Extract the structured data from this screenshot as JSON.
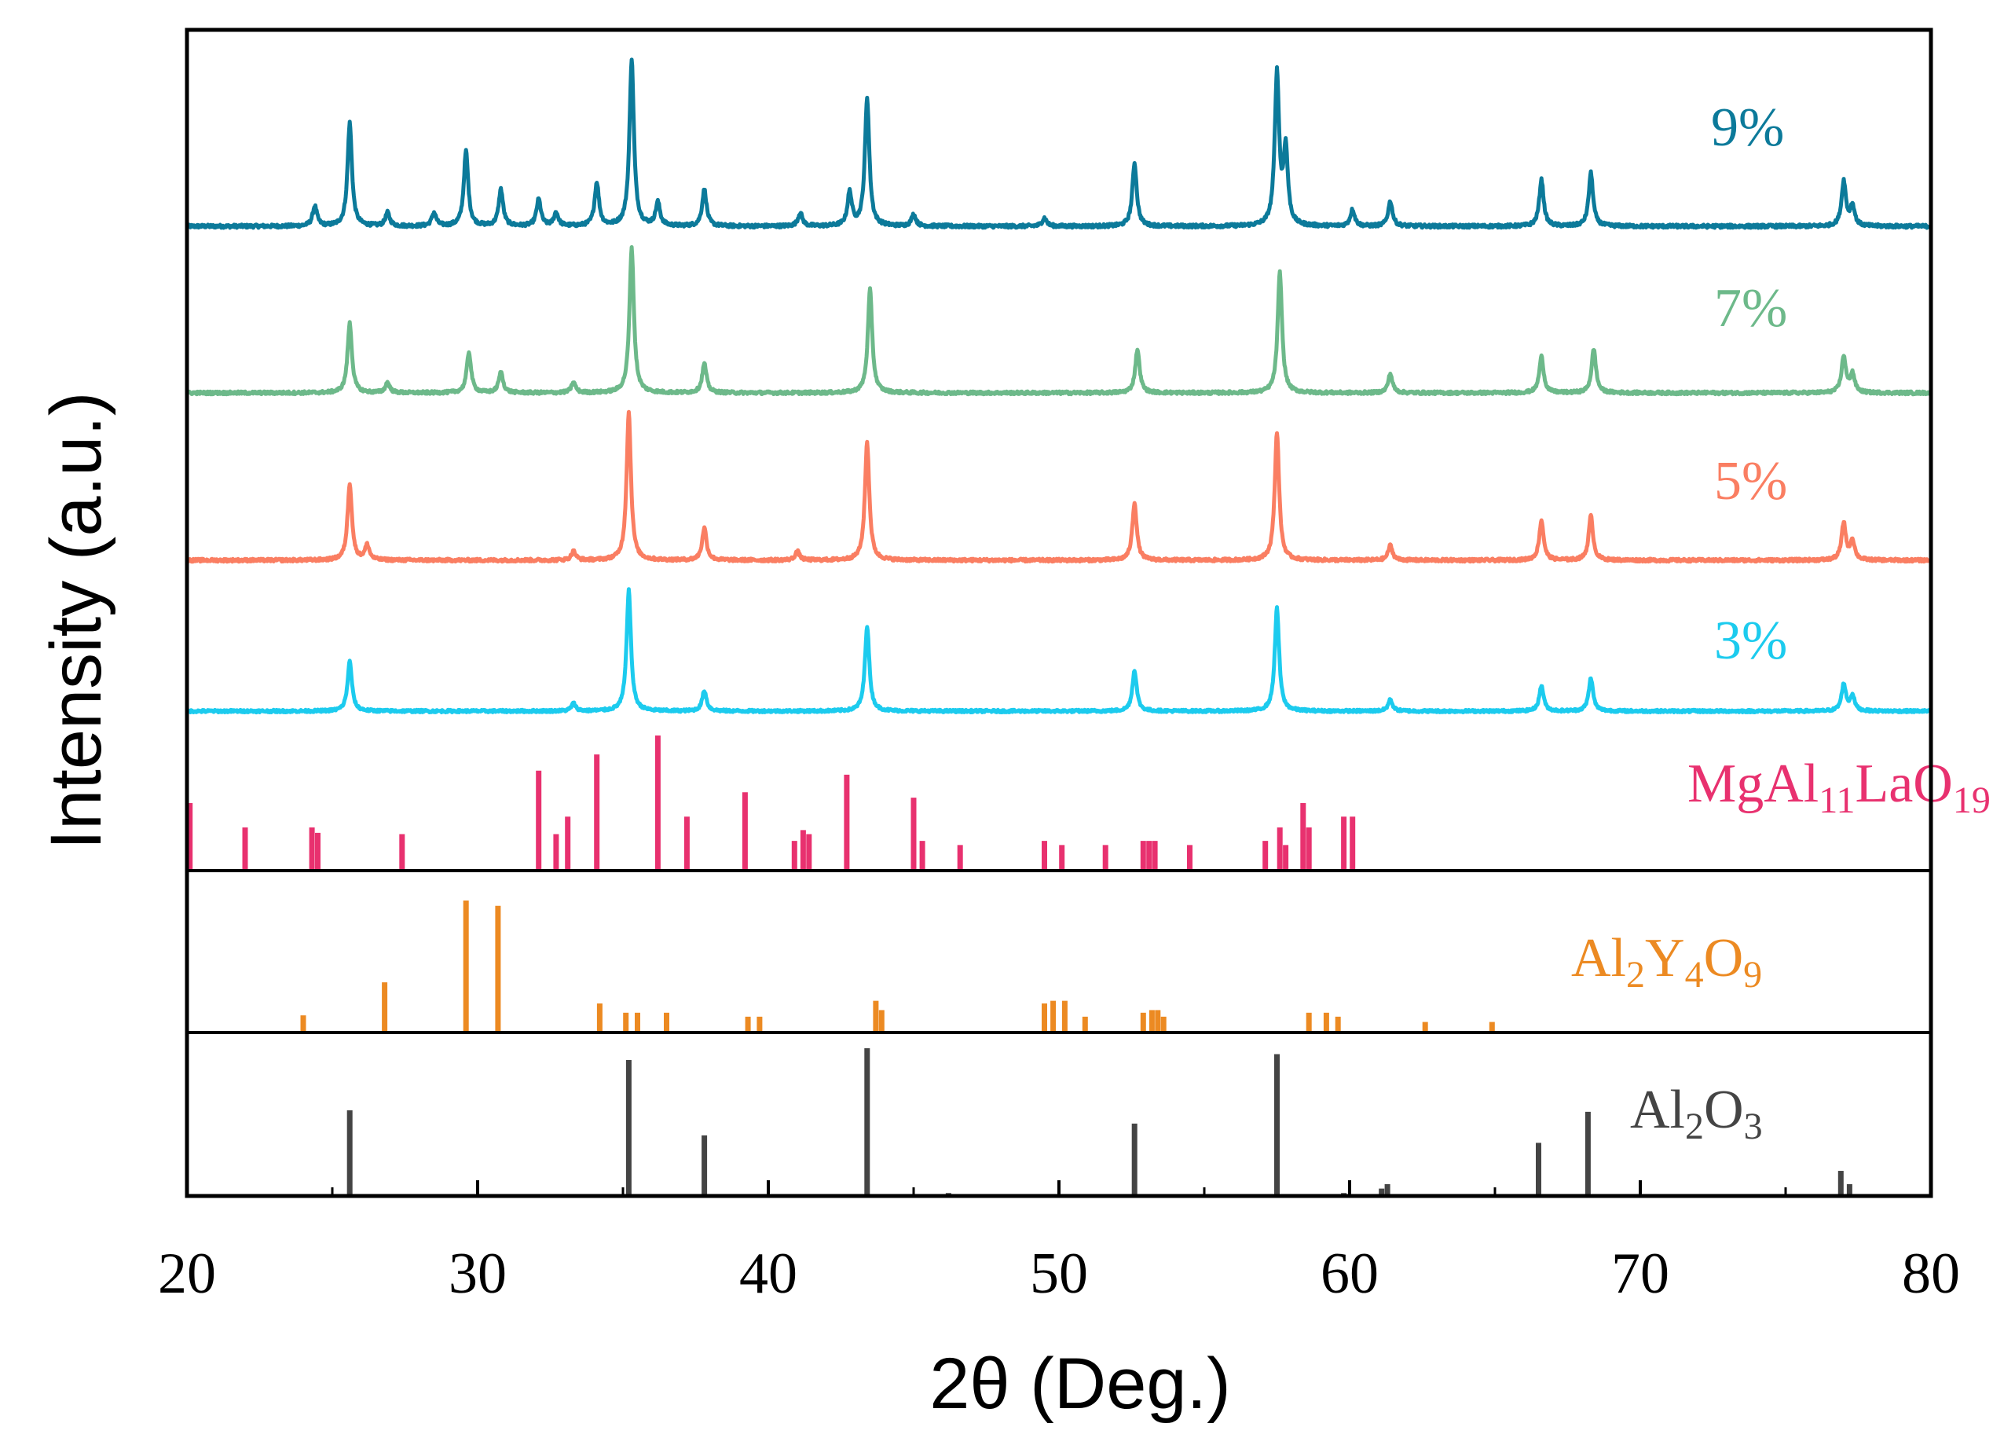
{
  "chart_data": {
    "type": "line",
    "title": "",
    "xlabel": "2θ (Deg.)",
    "ylabel": "Intensity (a.u.)",
    "xlim": [
      20,
      80
    ],
    "xticks": [
      "20",
      "30",
      "40",
      "50",
      "60",
      "70",
      "80"
    ],
    "grid": false,
    "series": [
      {
        "name": "9%",
        "color": "#0c7a9a",
        "peaks": [
          [
            24.4,
            0.12
          ],
          [
            25.6,
            0.62
          ],
          [
            26.9,
            0.08
          ],
          [
            28.5,
            0.08
          ],
          [
            29.6,
            0.45
          ],
          [
            30.8,
            0.22
          ],
          [
            32.1,
            0.16
          ],
          [
            32.7,
            0.08
          ],
          [
            34.1,
            0.26
          ],
          [
            35.3,
            1.0
          ],
          [
            36.2,
            0.14
          ],
          [
            37.8,
            0.22
          ],
          [
            41.1,
            0.08
          ],
          [
            42.8,
            0.2
          ],
          [
            43.4,
            0.77
          ],
          [
            45.0,
            0.07
          ],
          [
            49.5,
            0.05
          ],
          [
            52.6,
            0.38
          ],
          [
            57.5,
            0.91
          ],
          [
            57.8,
            0.45
          ],
          [
            60.1,
            0.1
          ],
          [
            61.4,
            0.15
          ],
          [
            66.6,
            0.28
          ],
          [
            68.3,
            0.32
          ],
          [
            77.0,
            0.27
          ],
          [
            77.3,
            0.12
          ]
        ]
      },
      {
        "name": "7%",
        "color": "#6db98a",
        "peaks": [
          [
            25.6,
            0.48
          ],
          [
            26.9,
            0.07
          ],
          [
            29.7,
            0.28
          ],
          [
            30.8,
            0.14
          ],
          [
            33.3,
            0.07
          ],
          [
            35.3,
            1.0
          ],
          [
            37.8,
            0.2
          ],
          [
            43.5,
            0.71
          ],
          [
            52.7,
            0.3
          ],
          [
            57.6,
            0.83
          ],
          [
            61.4,
            0.13
          ],
          [
            66.6,
            0.25
          ],
          [
            68.4,
            0.3
          ],
          [
            77.0,
            0.25
          ],
          [
            77.3,
            0.13
          ]
        ]
      },
      {
        "name": "5%",
        "color": "#fa7e62",
        "peaks": [
          [
            25.6,
            0.52
          ],
          [
            26.2,
            0.1
          ],
          [
            33.3,
            0.06
          ],
          [
            35.2,
            1.0
          ],
          [
            37.8,
            0.22
          ],
          [
            41.0,
            0.06
          ],
          [
            43.4,
            0.8
          ],
          [
            52.6,
            0.39
          ],
          [
            57.5,
            0.87
          ],
          [
            61.4,
            0.1
          ],
          [
            66.6,
            0.27
          ],
          [
            68.3,
            0.3
          ],
          [
            77.0,
            0.25
          ],
          [
            77.3,
            0.13
          ]
        ]
      },
      {
        "name": "3%",
        "color": "#1ccbee",
        "peaks": [
          [
            25.6,
            0.39
          ],
          [
            33.3,
            0.06
          ],
          [
            35.2,
            0.95
          ],
          [
            37.8,
            0.16
          ],
          [
            43.4,
            0.67
          ],
          [
            52.6,
            0.32
          ],
          [
            57.5,
            0.81
          ],
          [
            61.4,
            0.09
          ],
          [
            66.6,
            0.2
          ],
          [
            68.3,
            0.26
          ],
          [
            77.0,
            0.21
          ],
          [
            77.3,
            0.12
          ]
        ]
      }
    ],
    "references": [
      {
        "name": "MgAl11LaO19",
        "label_parts": [
          [
            "MgAl",
            ""
          ],
          [
            "11",
            "sub"
          ],
          [
            "LaO",
            ""
          ],
          [
            "19",
            "sub"
          ]
        ],
        "color": "#e8316f",
        "lines": [
          [
            20.1,
            0.5
          ],
          [
            22.0,
            0.32
          ],
          [
            24.3,
            0.32
          ],
          [
            24.5,
            0.28
          ],
          [
            27.4,
            0.27
          ],
          [
            32.1,
            0.74
          ],
          [
            32.7,
            0.27
          ],
          [
            33.1,
            0.4
          ],
          [
            34.1,
            0.86
          ],
          [
            36.2,
            1.0
          ],
          [
            37.2,
            0.4
          ],
          [
            39.2,
            0.58
          ],
          [
            40.9,
            0.22
          ],
          [
            41.2,
            0.3
          ],
          [
            41.4,
            0.27
          ],
          [
            42.7,
            0.71
          ],
          [
            45.0,
            0.54
          ],
          [
            45.3,
            0.22
          ],
          [
            46.6,
            0.19
          ],
          [
            49.5,
            0.22
          ],
          [
            50.1,
            0.19
          ],
          [
            51.6,
            0.19
          ],
          [
            52.9,
            0.22
          ],
          [
            53.1,
            0.22
          ],
          [
            53.3,
            0.22
          ],
          [
            54.5,
            0.19
          ],
          [
            57.1,
            0.22
          ],
          [
            57.6,
            0.32
          ],
          [
            57.8,
            0.19
          ],
          [
            58.4,
            0.5
          ],
          [
            58.6,
            0.32
          ],
          [
            59.8,
            0.4
          ],
          [
            60.1,
            0.4
          ]
        ]
      },
      {
        "name": "Al2Y4O9",
        "label_parts": [
          [
            "Al",
            ""
          ],
          [
            "2",
            "sub"
          ],
          [
            "Y",
            ""
          ],
          [
            "4",
            "sub"
          ],
          [
            "O",
            ""
          ],
          [
            "9",
            "sub"
          ]
        ],
        "color": "#ec8a22",
        "lines": [
          [
            24.0,
            0.13
          ],
          [
            26.8,
            0.38
          ],
          [
            29.6,
            1.0
          ],
          [
            30.7,
            0.96
          ],
          [
            34.2,
            0.22
          ],
          [
            35.1,
            0.15
          ],
          [
            35.5,
            0.15
          ],
          [
            36.5,
            0.15
          ],
          [
            39.3,
            0.12
          ],
          [
            39.7,
            0.12
          ],
          [
            43.7,
            0.24
          ],
          [
            43.9,
            0.17
          ],
          [
            49.5,
            0.22
          ],
          [
            49.8,
            0.24
          ],
          [
            50.2,
            0.24
          ],
          [
            50.9,
            0.12
          ],
          [
            52.9,
            0.15
          ],
          [
            53.2,
            0.17
          ],
          [
            53.4,
            0.17
          ],
          [
            53.6,
            0.12
          ],
          [
            58.6,
            0.15
          ],
          [
            59.2,
            0.15
          ],
          [
            59.6,
            0.12
          ],
          [
            62.6,
            0.08
          ],
          [
            64.9,
            0.08
          ]
        ]
      },
      {
        "name": "Al2O3",
        "label_parts": [
          [
            "Al",
            ""
          ],
          [
            "2",
            "sub"
          ],
          [
            "O",
            ""
          ],
          [
            "3",
            "sub"
          ]
        ],
        "color": "#444444",
        "lines": [
          [
            25.6,
            0.58
          ],
          [
            35.2,
            0.92
          ],
          [
            37.8,
            0.41
          ],
          [
            43.4,
            1.0
          ],
          [
            46.2,
            0.02
          ],
          [
            52.6,
            0.49
          ],
          [
            57.5,
            0.96
          ],
          [
            59.8,
            0.02
          ],
          [
            61.1,
            0.05
          ],
          [
            61.3,
            0.08
          ],
          [
            66.5,
            0.36
          ],
          [
            68.2,
            0.57
          ],
          [
            70.4,
            0.01
          ],
          [
            74.3,
            0.01
          ],
          [
            76.9,
            0.17
          ],
          [
            77.2,
            0.08
          ]
        ]
      }
    ]
  }
}
